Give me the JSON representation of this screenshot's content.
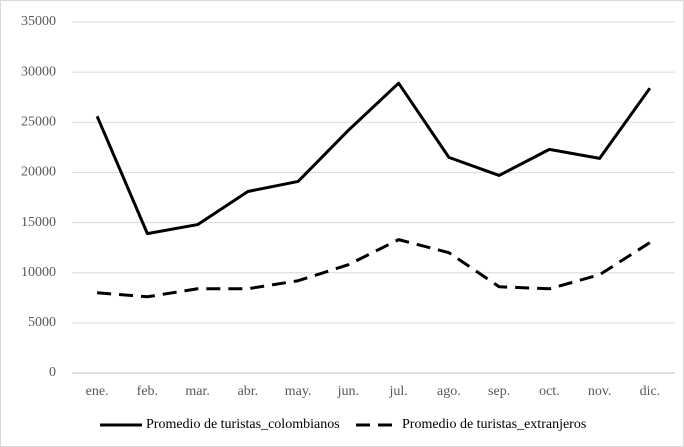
{
  "chart_data": {
    "type": "line",
    "categories": [
      "ene.",
      "feb.",
      "mar.",
      "abr.",
      "may.",
      "jun.",
      "jul.",
      "ago.",
      "sep.",
      "oct.",
      "nov.",
      "dic."
    ],
    "series": [
      {
        "name": "Promedio de turistas_colombianos",
        "color": "#000000",
        "style": "solid",
        "values": [
          25600,
          13900,
          14800,
          18100,
          19100,
          24200,
          28900,
          21500,
          19700,
          22300,
          21400,
          28400
        ]
      },
      {
        "name": "Promedio de turistas_extranjeros",
        "color": "#000000",
        "style": "dashed",
        "values": [
          8000,
          7600,
          8400,
          8400,
          9200,
          10800,
          13300,
          12000,
          8600,
          8400,
          9800,
          13000
        ]
      }
    ],
    "ylim": [
      0,
      35000
    ],
    "yticks": [
      0,
      5000,
      10000,
      15000,
      20000,
      25000,
      30000,
      35000
    ],
    "grid": true,
    "legend": "bottom"
  }
}
